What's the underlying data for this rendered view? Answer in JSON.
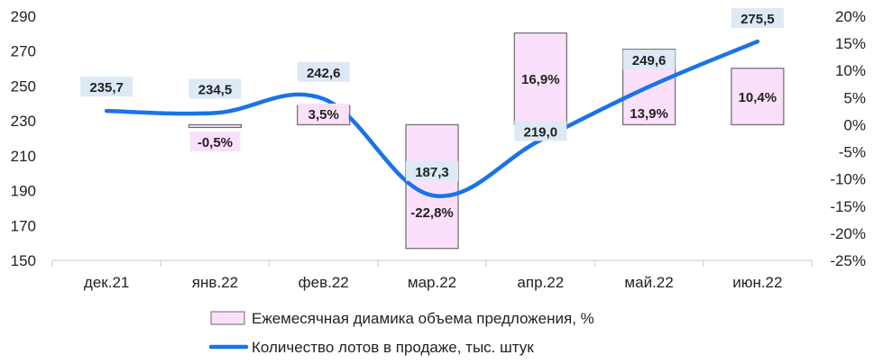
{
  "chart_data": {
    "type": "bar+line",
    "categories": [
      "дек.21",
      "янв.22",
      "фев.22",
      "мар.22",
      "апр.22",
      "май.22",
      "июн.22"
    ],
    "y_left": {
      "min": 150,
      "max": 290,
      "step": 20,
      "ticks": [
        "150",
        "170",
        "190",
        "210",
        "230",
        "250",
        "270",
        "290"
      ]
    },
    "y_right": {
      "min": -25,
      "max": 20,
      "step": 5,
      "ticks": [
        "-25%",
        "-20%",
        "-15%",
        "-10%",
        "-5%",
        "0%",
        "5%",
        "10%",
        "15%",
        "20%"
      ]
    },
    "series": [
      {
        "name": "Ежемесячная диамика объема предложения, %",
        "type": "bar",
        "axis": "right",
        "color": "#fbe0fb",
        "border": "#6b6b6b",
        "values": [
          null,
          -0.5,
          3.5,
          -22.8,
          16.9,
          13.9,
          10.4
        ],
        "labels": [
          "",
          "-0,5%",
          "3,5%",
          "-22,8%",
          "16,9%",
          "13,9%",
          "10,4%"
        ]
      },
      {
        "name": "Количество лотов в продаже, тыс. штук",
        "type": "line",
        "axis": "left",
        "color": "#1a73e8",
        "values": [
          235.7,
          234.5,
          242.6,
          187.3,
          219.0,
          249.6,
          275.5
        ],
        "labels": [
          "235,7",
          "234,5",
          "242,6",
          "187,3",
          "219,0",
          "249,6",
          "275,5"
        ]
      }
    ],
    "legend_position": "bottom",
    "grid": false
  }
}
